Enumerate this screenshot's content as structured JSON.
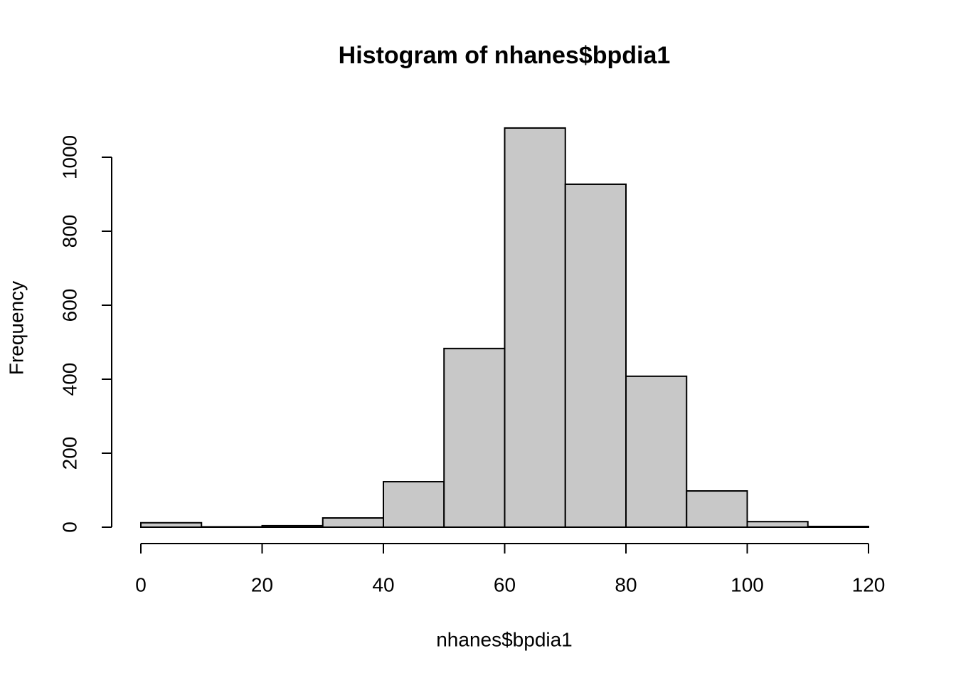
{
  "chart_data": {
    "type": "histogram",
    "title": "Histogram of nhanes$bpdia1",
    "x_label": "nhanes$bpdia1",
    "y_label": "Frequency",
    "bins": [
      0,
      10,
      20,
      30,
      40,
      50,
      60,
      70,
      80,
      90,
      100,
      110,
      120
    ],
    "values": [
      12,
      1,
      4,
      25,
      123,
      483,
      1079,
      927,
      408,
      98,
      15,
      2
    ],
    "color": "#c8c8c8",
    "xlim": [
      0,
      120
    ],
    "xticks": [
      0,
      20,
      40,
      60,
      80,
      100,
      120
    ],
    "ylim": [
      0,
      1000
    ],
    "yticks": [
      0,
      200,
      400,
      600,
      800,
      1000
    ]
  }
}
